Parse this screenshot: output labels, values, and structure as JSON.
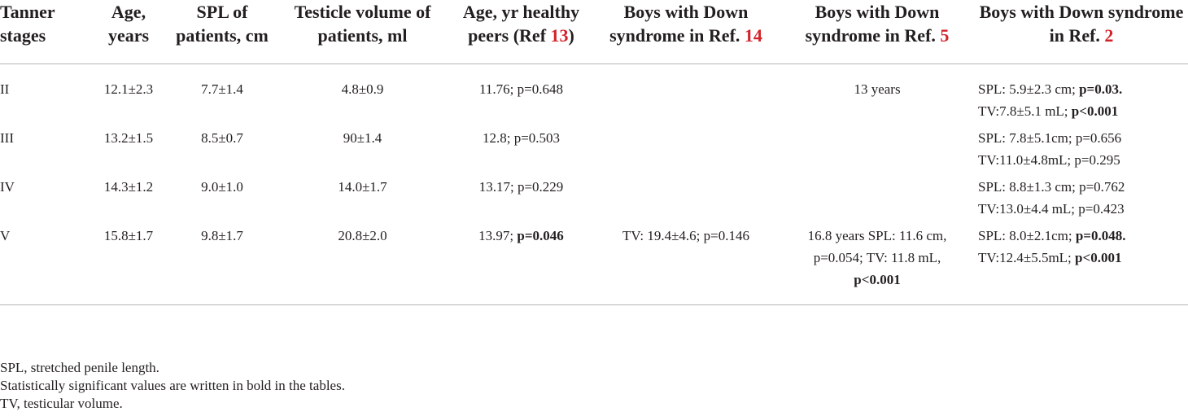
{
  "headers": {
    "tanner": "Tanner stages",
    "age": "Age, years",
    "spl": "SPL of patients, cm",
    "tv": "Testicle volume of patients, ml",
    "healthy_prefix": "Age, yr healthy peers (Ref ",
    "healthy_ref": "13",
    "healthy_suffix": ")",
    "ref14_prefix": "Boys with Down syndrome in Ref. ",
    "ref14_ref": "14",
    "ref5_prefix": "Boys with Down syndrome in Ref. ",
    "ref5_ref": "5",
    "ref2_prefix": "Boys with Down syndrome in Ref. ",
    "ref2_ref": "2"
  },
  "rows": [
    {
      "stage": "II",
      "age": "12.1±2.3",
      "spl": "7.7±1.4",
      "tv": "4.8±0.9",
      "healthy": {
        "plain": "11.76; p=0.648",
        "bold": ""
      },
      "ref14": "",
      "ref5": {
        "plain": "13 years",
        "bold": ""
      },
      "ref2": {
        "l1_plain": "SPL: 5.9±2.3 cm; ",
        "l1_bold": "p=0.03.",
        "l2_plain": "TV:7.8±5.1 mL; ",
        "l2_bold": "p<0.001"
      }
    },
    {
      "stage": "III",
      "age": "13.2±1.5",
      "spl": "8.5±0.7",
      "tv": "90±1.4",
      "healthy": {
        "plain": "12.8; p=0.503",
        "bold": ""
      },
      "ref14": "",
      "ref5": {
        "plain": "",
        "bold": ""
      },
      "ref2": {
        "l1_plain": "SPL: 7.8±5.1cm; p=0.656",
        "l1_bold": "",
        "l2_plain": "TV:11.0±4.8mL; p=0.295",
        "l2_bold": ""
      }
    },
    {
      "stage": "IV",
      "age": "14.3±1.2",
      "spl": "9.0±1.0",
      "tv": "14.0±1.7",
      "healthy": {
        "plain": "13.17; p=0.229",
        "bold": ""
      },
      "ref14": "",
      "ref5": {
        "plain": "",
        "bold": ""
      },
      "ref2": {
        "l1_plain": "SPL: 8.8±1.3 cm; p=0.762",
        "l1_bold": "",
        "l2_plain": "TV:13.0±4.4 mL; p=0.423",
        "l2_bold": ""
      }
    },
    {
      "stage": "V",
      "age": "15.8±1.7",
      "spl": "9.8±1.7",
      "tv": "20.8±2.0",
      "healthy": {
        "plain": "13.97; ",
        "bold": "p=0.046"
      },
      "ref14": "TV: 19.4±4.6; p=0.146",
      "ref5": {
        "plain": "16.8 years SPL: 11.6 cm, p=0.054; TV: 11.8 mL,",
        "bold": "p<0.001"
      },
      "ref2": {
        "l1_plain": "SPL: 8.0±2.1cm; ",
        "l1_bold": "p=0.048.",
        "l2_plain": "TV:12.4±5.5mL; ",
        "l2_bold": "p<0.001"
      }
    }
  ],
  "notes": [
    "SPL, stretched penile length.",
    "Statistically significant values are written in bold in the tables.",
    "TV, testicular volume."
  ]
}
